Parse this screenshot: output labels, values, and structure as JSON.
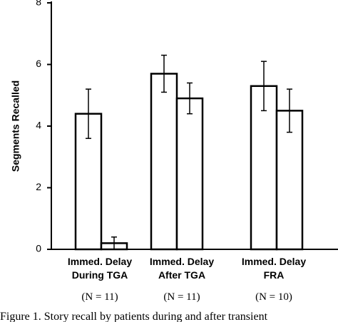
{
  "chart_data": {
    "type": "bar",
    "ylabel": "Segments Recalled",
    "ylim": [
      0,
      8
    ],
    "yticks": [
      "0",
      "2",
      "4",
      "6",
      "8"
    ],
    "groups": [
      {
        "line1": "Immed. Delay",
        "line2": "During TGA",
        "n": "(N = 11)"
      },
      {
        "line1": "Immed. Delay",
        "line2": "After TGA",
        "n": "(N = 11)"
      },
      {
        "line1": "Immed. Delay",
        "line2": "FRA",
        "n": "(N = 10)"
      }
    ],
    "series": [
      {
        "values": [
          4.4,
          5.7,
          5.3
        ],
        "error": [
          0.8,
          0.6,
          0.8
        ]
      },
      {
        "values": [
          0.2,
          4.9,
          4.5
        ],
        "error": [
          0.2,
          0.5,
          0.7
        ]
      }
    ],
    "bar_fill": "#ffffff",
    "bar_stroke": "#000000",
    "grid": false
  },
  "caption": "Figure 1.  Story recall by patients during and after transient"
}
